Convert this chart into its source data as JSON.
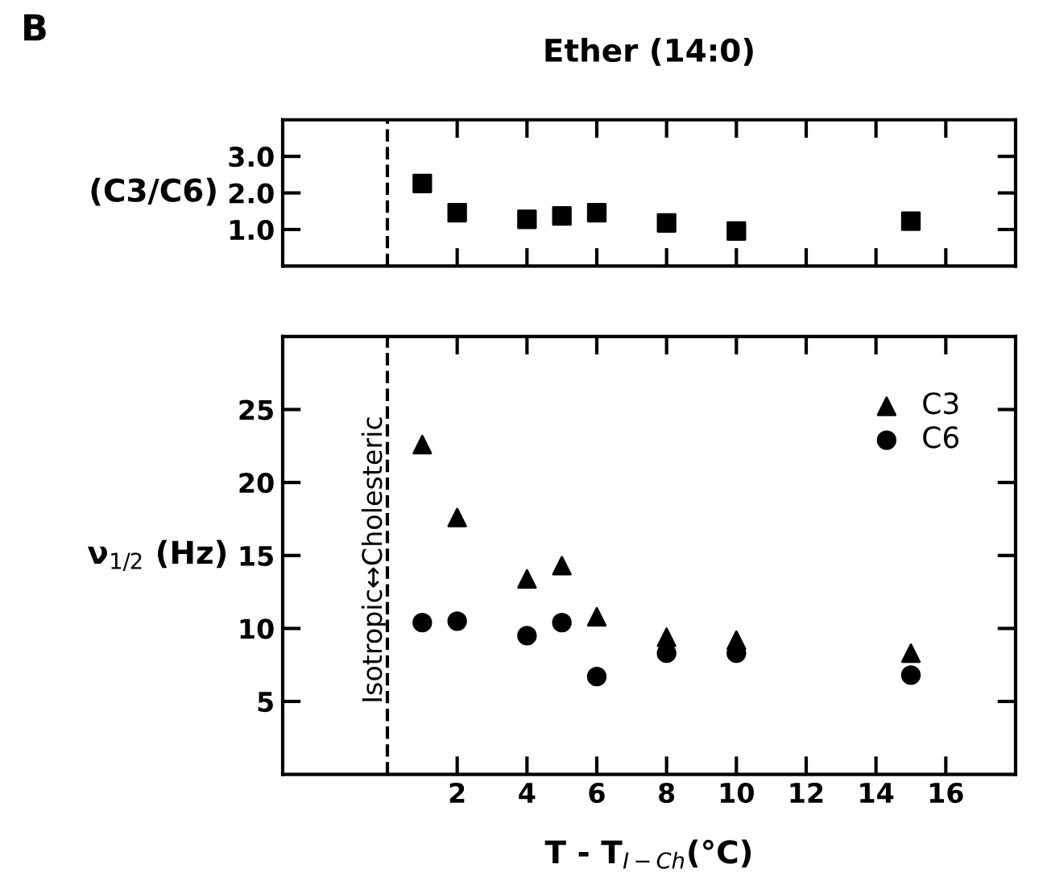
{
  "chart_data": [
    {
      "type": "scatter",
      "title": "Ether (14:0)",
      "ylabel": "(C3/C6)",
      "annotations": [
        "B"
      ],
      "x": [
        1,
        2,
        4,
        5,
        6,
        8,
        10,
        15
      ],
      "series": [
        {
          "color": "#000000",
          "marker": "square",
          "values": [
            2.26,
            1.46,
            1.28,
            1.37,
            1.46,
            1.18,
            0.96,
            1.23
          ]
        }
      ],
      "xlim": [
        -3,
        18
      ],
      "xticks": [
        {
          "value": 2,
          "label": null
        },
        {
          "value": 4,
          "label": null
        },
        {
          "value": 6,
          "label": null
        },
        {
          "value": 8,
          "label": null
        },
        {
          "value": 10,
          "label": null
        },
        {
          "value": 12,
          "label": null
        },
        {
          "value": 14,
          "label": null
        },
        {
          "value": 16,
          "label": null
        }
      ],
      "ylim": [
        0,
        4
      ],
      "yticks": [
        {
          "value": 1,
          "label": "1.0"
        },
        {
          "value": 2,
          "label": "2.0"
        },
        {
          "value": 3,
          "label": "3.0"
        }
      ],
      "ref_lines": [
        {
          "axis": "x",
          "value": 0,
          "line_style": "dashed",
          "color": "#000000"
        }
      ],
      "tick_labels": "y",
      "grid": false,
      "legend": false
    },
    {
      "type": "scatter",
      "xlabel": "T - T$_{I−Ch}$(°C)",
      "ylabel": "ν$_{1/2}$ (Hz)",
      "x": [
        1,
        2,
        4,
        5,
        6,
        8,
        10,
        15
      ],
      "series": [
        {
          "name": "C3",
          "color": "#000000",
          "marker": "triangle",
          "values": [
            22.6,
            17.6,
            13.4,
            14.3,
            10.8,
            9.4,
            9.2,
            8.3
          ]
        },
        {
          "name": "C6",
          "color": "#000000",
          "marker": "circle",
          "values": [
            10.4,
            10.5,
            9.5,
            10.4,
            6.7,
            8.3,
            8.3,
            6.8
          ]
        }
      ],
      "xlim": [
        -3,
        18
      ],
      "xticks": [
        2,
        4,
        6,
        8,
        10,
        12,
        14,
        16
      ],
      "ylim": [
        0,
        30
      ],
      "yticks": [
        5,
        10,
        15,
        20,
        25
      ],
      "ref_lines": [
        {
          "axis": "x",
          "value": 0,
          "label": "Isotropic↔Cholesteric",
          "line_style": "dashed",
          "color": "#000000"
        }
      ],
      "grid": false,
      "legend": "top right"
    }
  ]
}
